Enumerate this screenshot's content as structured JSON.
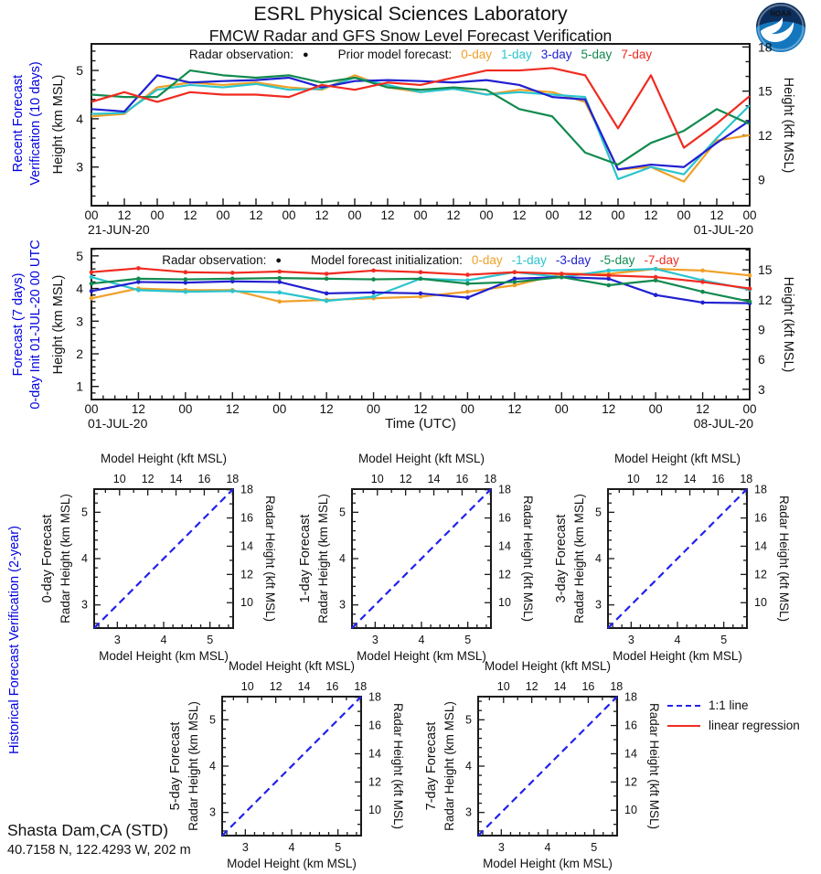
{
  "header": {
    "title": "ESRL Physical Sciences Laboratory",
    "subtitle": "FMCW Radar and GFS Snow Level Forecast Verification"
  },
  "hist_label": "Historical Forecast Verification (2-year)",
  "key": {
    "line11_label": "1:1 line",
    "linreg_label": "linear regression"
  },
  "footer": {
    "station": "Shasta Dam,CA (STD)",
    "coords": "40.7158 N, 122.4293 W, 202 m"
  },
  "colors": {
    "orange": "#f0a028",
    "cyan": "#2bc4ce",
    "blue": "#2020d0",
    "green": "#128a4f",
    "red": "#f02b20",
    "label_blue": "#0000e0",
    "axis": "#1a1a1a",
    "one_to_one": "#2222ee",
    "regression": "#ee2e24"
  },
  "chart_data": [
    {
      "id": "recent-verification",
      "type": "line",
      "side_label_1": "Recent Forecast",
      "side_label_2": "Verification (10 days)",
      "ylabel_km": "Height (km MSL)",
      "ylabel_kft": "Height (kft MSL)",
      "legend": {
        "obs": "Radar observation:",
        "marker": "●",
        "model": "Prior model forecast:"
      },
      "ylim": [
        2.2,
        5.55
      ],
      "yticks_left": [
        3,
        4,
        5
      ],
      "yticks_right": [
        9,
        12,
        15,
        18
      ],
      "x_total_hours": 240,
      "x_step_hours": 12,
      "x_minor_hours": 6,
      "x_tick_labels": [
        "00",
        "12",
        "00",
        "12",
        "00",
        "12",
        "00",
        "12",
        "00",
        "12",
        "00",
        "12",
        "00",
        "12",
        "00",
        "12",
        "00",
        "12",
        "00",
        "12",
        "00"
      ],
      "date_left": "21-JUN-20",
      "date_right": "01-JUL-20",
      "markers": false,
      "series": [
        {
          "label": "0-day",
          "color": "orange",
          "values": [
            4.05,
            4.1,
            4.65,
            4.75,
            4.7,
            4.75,
            4.65,
            4.6,
            4.9,
            4.65,
            4.55,
            4.65,
            4.5,
            4.6,
            4.55,
            4.35,
            2.95,
            3.0,
            2.7,
            3.55,
            3.66
          ]
        },
        {
          "label": "1-day",
          "color": "cyan",
          "values": [
            4.1,
            4.12,
            4.6,
            4.7,
            4.65,
            4.72,
            4.6,
            4.62,
            4.85,
            4.7,
            4.55,
            4.62,
            4.5,
            4.55,
            4.5,
            4.45,
            2.75,
            3.0,
            2.85,
            3.6,
            4.28
          ]
        },
        {
          "label": "3-day",
          "color": "blue",
          "values": [
            4.2,
            4.15,
            4.9,
            4.75,
            4.78,
            4.8,
            4.85,
            4.65,
            4.78,
            4.8,
            4.78,
            4.75,
            4.8,
            4.7,
            4.45,
            4.4,
            2.95,
            3.05,
            3.0,
            3.5,
            3.96
          ]
        },
        {
          "label": "5-day",
          "color": "green",
          "values": [
            4.5,
            4.45,
            4.45,
            5.0,
            4.9,
            4.85,
            4.9,
            4.75,
            4.85,
            4.65,
            4.6,
            4.65,
            4.6,
            4.2,
            4.05,
            3.3,
            3.05,
            3.5,
            3.75,
            4.2,
            3.89
          ]
        },
        {
          "label": "7-day",
          "color": "red",
          "values": [
            4.35,
            4.55,
            4.35,
            4.55,
            4.5,
            4.5,
            4.45,
            4.7,
            4.6,
            4.75,
            4.7,
            4.85,
            5.0,
            5.0,
            5.05,
            4.9,
            3.8,
            4.9,
            3.4,
            3.9,
            4.47
          ]
        }
      ]
    },
    {
      "id": "forecast-7day",
      "type": "line",
      "side_label_1": "Forecast (7 days)",
      "side_label_2": "0-day Init 01-JUL-20 00 UTC",
      "ylabel_km": "Height (km MSL)",
      "ylabel_kft": "Height (kft MSL)",
      "legend": {
        "obs": "Radar observation:",
        "marker": "●",
        "model": "Model forecast initialization:"
      },
      "ylim": [
        0.6,
        5.22
      ],
      "yticks_left": [
        1,
        2,
        3,
        4,
        5
      ],
      "yticks_right": [
        3,
        6,
        9,
        12,
        15
      ],
      "x_total_hours": 168,
      "x_step_hours": 12,
      "x_minor_hours": 3,
      "x_tick_labels": [
        "00",
        "12",
        "00",
        "12",
        "00",
        "12",
        "00",
        "12",
        "00",
        "12",
        "00",
        "12",
        "00",
        "12",
        "00"
      ],
      "date_left": "01-JUL-20",
      "date_center": "Time (UTC)",
      "date_right": "08-JUL-20",
      "markers": true,
      "series": [
        {
          "label": "0-day",
          "color": "orange",
          "values": [
            3.7,
            4.0,
            3.95,
            3.95,
            3.6,
            3.65,
            3.7,
            3.75,
            3.9,
            4.1,
            4.45,
            4.45,
            4.6,
            4.55,
            4.4
          ]
        },
        {
          "label": "-1-day",
          "color": "cyan",
          "values": [
            4.35,
            3.95,
            3.9,
            3.92,
            3.88,
            3.62,
            3.75,
            4.3,
            4.25,
            4.5,
            4.35,
            4.55,
            4.6,
            4.25,
            3.97
          ]
        },
        {
          "label": "-3-day",
          "color": "blue",
          "values": [
            3.92,
            4.2,
            4.18,
            4.22,
            4.2,
            3.85,
            3.88,
            3.85,
            3.72,
            4.3,
            4.35,
            4.3,
            3.8,
            3.57,
            3.55
          ]
        },
        {
          "label": "-5-day",
          "color": "green",
          "values": [
            4.15,
            4.3,
            4.28,
            4.3,
            4.32,
            4.3,
            4.28,
            4.3,
            4.15,
            4.2,
            4.35,
            4.1,
            4.25,
            3.9,
            3.6
          ]
        },
        {
          "label": "-7-day",
          "color": "red",
          "values": [
            4.5,
            4.62,
            4.5,
            4.48,
            4.52,
            4.45,
            4.55,
            4.5,
            4.42,
            4.5,
            4.45,
            4.4,
            4.35,
            4.2,
            4.0
          ]
        }
      ]
    },
    {
      "id": "scatter-0-day",
      "type": "scatter",
      "title": "0-day Forecast",
      "xlabel_top": "Model Height (kft MSL)",
      "xlabel_bottom": "Model Height (km MSL)",
      "ylabel_left": "Radar Height (km MSL)",
      "ylabel_right": "Radar Height (kft MSL)",
      "km_range": [
        2.5,
        5.5
      ],
      "km_ticks": [
        3,
        4,
        5
      ],
      "kft_ticks": [
        10,
        12,
        14,
        16,
        18
      ],
      "diagonal": "1:1",
      "points": []
    },
    {
      "id": "scatter-1-day",
      "type": "scatter",
      "title": "1-day Forecast",
      "xlabel_top": "Model Height (kft MSL)",
      "xlabel_bottom": "Model Height (km MSL)",
      "ylabel_left": "Radar Height (km MSL)",
      "ylabel_right": "Radar Height (kft MSL)",
      "km_range": [
        2.5,
        5.5
      ],
      "km_ticks": [
        3,
        4,
        5
      ],
      "kft_ticks": [
        10,
        12,
        14,
        16,
        18
      ],
      "diagonal": "1:1",
      "points": []
    },
    {
      "id": "scatter-3-day",
      "type": "scatter",
      "title": "3-day Forecast",
      "xlabel_top": "Model Height (kft MSL)",
      "xlabel_bottom": "Model Height (km MSL)",
      "ylabel_left": "Radar Height (km MSL)",
      "ylabel_right": "Radar Height (kft MSL)",
      "km_range": [
        2.5,
        5.5
      ],
      "km_ticks": [
        3,
        4,
        5
      ],
      "kft_ticks": [
        10,
        12,
        14,
        16,
        18
      ],
      "diagonal": "1:1",
      "points": []
    },
    {
      "id": "scatter-5-day",
      "type": "scatter",
      "title": "5-day Forecast",
      "xlabel_top": "Model Height (kft MSL)",
      "xlabel_bottom": "Model Height (km MSL)",
      "ylabel_left": "Radar Height (km MSL)",
      "ylabel_right": "Radar Height (kft MSL)",
      "km_range": [
        2.5,
        5.5
      ],
      "km_ticks": [
        3,
        4,
        5
      ],
      "kft_ticks": [
        10,
        12,
        14,
        16,
        18
      ],
      "diagonal": "1:1",
      "points": []
    },
    {
      "id": "scatter-7-day",
      "type": "scatter",
      "title": "7-day Forecast",
      "xlabel_top": "Model Height (kft MSL)",
      "xlabel_bottom": "Model Height (km MSL)",
      "ylabel_left": "Radar Height (km MSL)",
      "ylabel_right": "Radar Height (kft MSL)",
      "km_range": [
        2.5,
        5.5
      ],
      "km_ticks": [
        3,
        4,
        5
      ],
      "kft_ticks": [
        10,
        12,
        14,
        16,
        18
      ],
      "diagonal": "1:1",
      "points": []
    }
  ]
}
